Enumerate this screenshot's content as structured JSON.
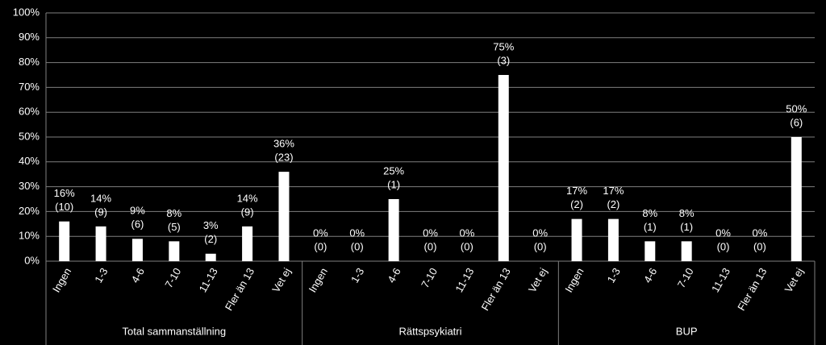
{
  "chart_data": {
    "type": "bar",
    "color": "#ffffff",
    "grid": true,
    "ylim": [
      0,
      100
    ],
    "yticks": [
      {
        "value": 0,
        "label": "0%"
      },
      {
        "value": 10,
        "label": "10%"
      },
      {
        "value": 20,
        "label": "20%"
      },
      {
        "value": 30,
        "label": "30%"
      },
      {
        "value": 40,
        "label": "40%"
      },
      {
        "value": 50,
        "label": "50%"
      },
      {
        "value": 60,
        "label": "60%"
      },
      {
        "value": 70,
        "label": "70%"
      },
      {
        "value": 80,
        "label": "80%"
      },
      {
        "value": 90,
        "label": "90%"
      },
      {
        "value": 100,
        "label": "100%"
      }
    ],
    "groups": [
      {
        "name": "Total sammanställning",
        "categories": [
          "Ingen",
          "1-3",
          "4-6",
          "7-10",
          "11-13",
          "Fler än 13",
          "Vet ej"
        ],
        "values": [
          16,
          14,
          9,
          8,
          3,
          14,
          36
        ],
        "value_labels": [
          "16%",
          "14%",
          "9%",
          "8%",
          "3%",
          "14%",
          "36%"
        ],
        "count_labels": [
          "(10)",
          "(9)",
          "(6)",
          "(5)",
          "(2)",
          "(9)",
          "(23)"
        ]
      },
      {
        "name": "Rättspsykiatri",
        "categories": [
          "Ingen",
          "1-3",
          "4-6",
          "7-10",
          "11-13",
          "Fler än 13",
          "Vet ej"
        ],
        "values": [
          0,
          0,
          25,
          0,
          0,
          75,
          0
        ],
        "value_labels": [
          "0%",
          "0%",
          "25%",
          "0%",
          "0%",
          "75%",
          "0%"
        ],
        "count_labels": [
          "(0)",
          "(0)",
          "(1)",
          "(0)",
          "(0)",
          "(3)",
          "(0)"
        ]
      },
      {
        "name": "BUP",
        "categories": [
          "Ingen",
          "1-3",
          "4-6",
          "7-10",
          "11-13",
          "Fler än 13",
          "Vet ej"
        ],
        "values": [
          17,
          17,
          8,
          8,
          0,
          0,
          50
        ],
        "value_labels": [
          "17%",
          "17%",
          "8%",
          "8%",
          "0%",
          "0%",
          "50%"
        ],
        "count_labels": [
          "(2)",
          "(2)",
          "(1)",
          "(1)",
          "(0)",
          "(0)",
          "(6)"
        ]
      }
    ]
  }
}
